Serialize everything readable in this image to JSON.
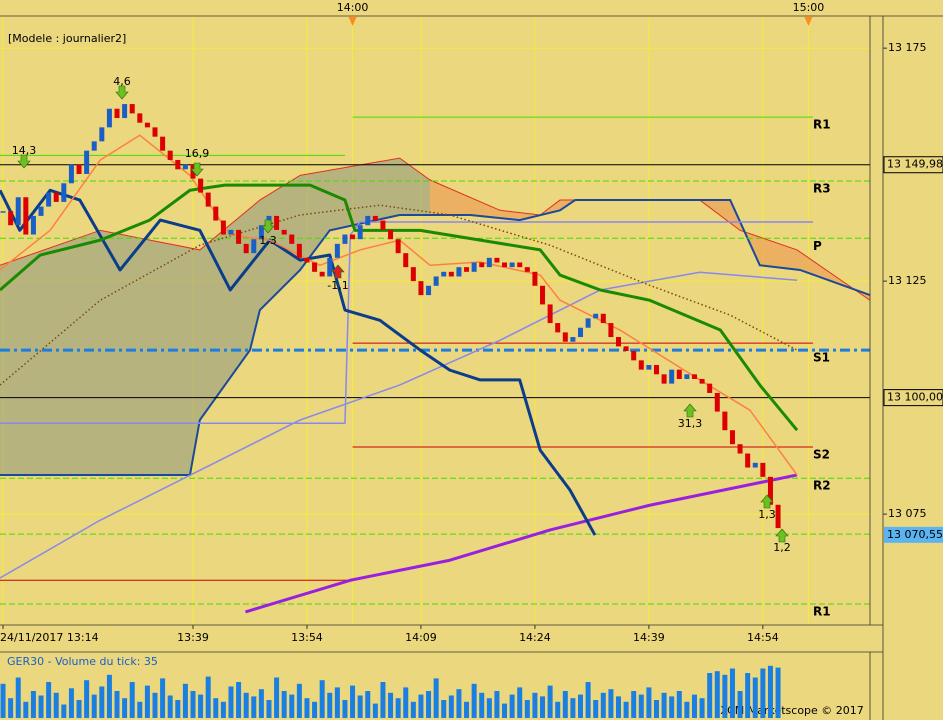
{
  "chart_data": {
    "type": "candlestick",
    "title": "[Modele : journalier2]",
    "footer": "FXCM Marketscope © 2017",
    "xlim": [
      13.6,
      128.1
    ],
    "ylim": [
      13051.2,
      13181.9
    ],
    "yticks": [
      {
        "value": 13175,
        "label": "13 175"
      },
      {
        "value": 13125,
        "label": "13 125"
      },
      {
        "value": 13075,
        "label": "13 075"
      }
    ],
    "xticks": [
      {
        "value": 14,
        "label": "24/11/2017 13:14"
      },
      {
        "value": 39,
        "label": "13:39"
      },
      {
        "value": 54,
        "label": "13:54"
      },
      {
        "value": 69,
        "label": "14:09"
      },
      {
        "value": 84,
        "label": "14:24"
      },
      {
        "value": 99,
        "label": "14:39"
      },
      {
        "value": 114,
        "label": "14:54"
      }
    ],
    "top_xticks": [
      {
        "value": 60,
        "label": "14:00"
      },
      {
        "value": 120,
        "label": "15:00"
      }
    ],
    "up_color": "#1a5fc8",
    "down_color": "#dd0000",
    "x": [
      14,
      15,
      16,
      17,
      18,
      19,
      20,
      21,
      22,
      23,
      24,
      25,
      26,
      27,
      28,
      29,
      30,
      31,
      32,
      33,
      34,
      35,
      36,
      37,
      38,
      39,
      40,
      41,
      42,
      43,
      44,
      45,
      46,
      47,
      48,
      49,
      50,
      51,
      52,
      53,
      54,
      55,
      56,
      57,
      58,
      59,
      60,
      61,
      62,
      63,
      64,
      65,
      66,
      67,
      68,
      69,
      70,
      71,
      72,
      73,
      74,
      75,
      76,
      77,
      78,
      79,
      80,
      81,
      82,
      83,
      84,
      85,
      86,
      87,
      88,
      89,
      90,
      91,
      92,
      93,
      94,
      95,
      96,
      97,
      98,
      99,
      100,
      101,
      102,
      103,
      104,
      105,
      106,
      107,
      108,
      109,
      110,
      111,
      112,
      113,
      114,
      115,
      116
    ],
    "values": [
      13140,
      13137,
      13143,
      13135,
      13139,
      13141,
      13144,
      13142,
      13146,
      13150,
      13148,
      13153,
      13155,
      13158,
      13162,
      13160,
      13163,
      13161,
      13159,
      13158,
      13156,
      13153,
      13151,
      13149,
      13150,
      13147,
      13144,
      13141,
      13138,
      13135,
      13136,
      13133,
      13131,
      13134,
      13137,
      13139,
      13136,
      13135,
      13133,
      13130,
      13129,
      13127,
      13126,
      13130,
      13133,
      13135,
      13134,
      13137,
      13139,
      13138,
      13136,
      13134,
      13131,
      13128,
      13125,
      13122,
      13124,
      13126,
      13127,
      13126,
      13128,
      13127,
      13129,
      13128,
      13130,
      13129,
      13128,
      13129,
      13128,
      13127,
      13124,
      13120,
      13116,
      13114,
      13112,
      13113,
      13115,
      13117,
      13118,
      13116,
      13113,
      13111,
      13110,
      13108,
      13106,
      13107,
      13105,
      13103,
      13106,
      13104,
      13105,
      13104,
      13103,
      13101,
      13097,
      13093,
      13090,
      13088,
      13085,
      13086,
      13083,
      13077,
      13072
    ],
    "levels": [
      {
        "label": "R1",
        "value": 13160.2,
        "color": "#44dd00",
        "style": "solid",
        "start": 60,
        "end": 120.6
      },
      {
        "label": "R3",
        "value": 13146.5,
        "color": "#44dd00",
        "style": "dashed"
      },
      {
        "label": "P",
        "value": 13134.2,
        "color": "#44dd00",
        "style": "dashed"
      },
      {
        "label": "S1",
        "value": 13110.2,
        "color": "#1a7fe0",
        "style": "dashdot"
      },
      {
        "label": "S2",
        "value": 13089.4,
        "color": "#cc0000",
        "style": "solid",
        "start": 60,
        "end": 120.6
      },
      {
        "label": "R2",
        "value": 13082.7,
        "color": "#44dd00",
        "style": "dashed"
      },
      {
        "label": "R1",
        "value": 13055.7,
        "color": "#44dd00",
        "style": "dashed"
      },
      {
        "value": 13111.7,
        "color": "#cc0000",
        "style": "solid",
        "start": 60,
        "end": 120.6
      },
      {
        "value": 13060.8,
        "color": "#cc0000",
        "style": "solid",
        "start": 13.6,
        "end": 60
      },
      {
        "value": 13152.0,
        "color": "#44dd00",
        "style": "solid",
        "start": 13.6,
        "end": 59
      },
      {
        "value": 13070.7,
        "color": "#44dd00",
        "style": "dashed"
      }
    ],
    "price_markers": [
      {
        "value": 13149.98,
        "label": "13 149,98",
        "color": "#000000"
      },
      {
        "value": 13100,
        "label": "13 100,00",
        "color": "#000000"
      },
      {
        "value": 13070.55,
        "label": "13 070,55",
        "color": "#5bb4f0"
      }
    ],
    "cloud": {
      "upper": {
        "color": "#e03020",
        "x": [
          13.6,
          26.8,
          39.9,
          47.8,
          53.1,
          66.2,
          70.2,
          79.4,
          84.7,
          87.3,
          105.7,
          111.0,
          118.5,
          128.1
        ],
        "values": [
          13128.4,
          13135.9,
          13131.7,
          13142.4,
          13147.7,
          13151.4,
          13146.7,
          13140.2,
          13139.2,
          13142.4,
          13142.4,
          13135.9,
          13131.7,
          13120.9
        ]
      },
      "lower": {
        "color": "#1a4a9a",
        "x": [
          13.6,
          38.6,
          39.9,
          46.5,
          47.8,
          53.1,
          57.0,
          66.2,
          75.5,
          82.0,
          87.3,
          89.3,
          109.7,
          113.6,
          118.9,
          128.1
        ],
        "values": [
          13083.4,
          13083.4,
          13095.2,
          13110.2,
          13118.8,
          13127.4,
          13135.9,
          13139.2,
          13139.2,
          13138.1,
          13140.2,
          13142.4,
          13142.4,
          13128.4,
          13127.4,
          13122.0
        ]
      }
    },
    "lines": [
      {
        "color": "#8888ee",
        "width": 1.5,
        "x": [
          13.6,
          59.0,
          59.7,
          61.0,
          120.6
        ],
        "values": [
          13094.5,
          13094.5,
          13134.9,
          13137.7,
          13137.7
        ]
      },
      {
        "color": "#8888ee",
        "width": 1.5,
        "x": [
          13.6,
          26.8,
          39.9,
          53.1,
          66.2,
          79.4,
          92.6,
          105.7,
          118.5
        ],
        "values": [
          13061.3,
          13073.7,
          13084.4,
          13095.2,
          13102.7,
          13112.3,
          13123.1,
          13126.9,
          13125.2
        ]
      },
      {
        "color": "#7a4a10",
        "width": 1.5,
        "dotted": true,
        "x": [
          13.6,
          26.8,
          39.9,
          53.1,
          63.6,
          72.8,
          86.0,
          99.1,
          109.7,
          118.5
        ],
        "values": [
          13102.7,
          13120.9,
          13132.7,
          13139.2,
          13141.3,
          13139.2,
          13132.7,
          13124.1,
          13117.7,
          13110.2
        ]
      },
      {
        "color": "#9a20e0",
        "width": 3,
        "x": [
          45.9,
          59.7,
          72.8,
          86.0,
          99.1,
          118.5
        ],
        "values": [
          13054.0,
          13060.8,
          13065.1,
          13071.6,
          13076.9,
          13083.4
        ]
      },
      {
        "color": "#0a3d8a",
        "width": 3,
        "x": [
          13.6,
          16.2,
          20.2,
          24.1,
          29.4,
          34.7,
          39.9,
          43.9,
          49.1,
          53.1,
          57.0,
          59.0,
          63.6,
          68.9,
          72.8,
          76.8,
          82.0,
          84.7,
          88.6,
          91.9
        ],
        "values": [
          13144.5,
          13135.9,
          13144.5,
          13142.4,
          13127.4,
          13138.1,
          13135.9,
          13123.1,
          13133.8,
          13129.5,
          13130.6,
          13118.8,
          13116.6,
          13110.2,
          13105.9,
          13103.8,
          13103.8,
          13088.7,
          13080.2,
          13070.5
        ]
      },
      {
        "color": "#ff8040",
        "width": 1.5,
        "x": [
          13.6,
          20.2,
          26.8,
          32.0,
          38.6,
          43.9,
          49.1,
          55.7,
          61.0,
          66.2,
          70.2,
          76.8,
          84.7,
          87.3,
          95.2,
          105.7,
          112.3,
          118.5
        ],
        "values": [
          13127.4,
          13135.9,
          13151.0,
          13156.3,
          13147.7,
          13134.9,
          13133.8,
          13128.4,
          13131.7,
          13133.8,
          13128.4,
          13129.1,
          13126.3,
          13120.9,
          13114.5,
          13103.8,
          13097.3,
          13083.4
        ]
      },
      {
        "color": "#1a8a00",
        "width": 3,
        "x": [
          13.6,
          18.9,
          26.8,
          33.3,
          38.6,
          43.2,
          54.4,
          59.0,
          60.3,
          68.9,
          76.8,
          84.7,
          87.3,
          92.6,
          99.1,
          108.4,
          113.6,
          118.5
        ],
        "values": [
          13123.1,
          13130.6,
          13133.8,
          13138.1,
          13144.5,
          13145.6,
          13145.6,
          13142.4,
          13135.9,
          13135.9,
          13133.8,
          13131.7,
          13126.3,
          13123.1,
          13120.9,
          13114.5,
          13102.7,
          13093.0
        ]
      }
    ],
    "annotations": [
      "4,6",
      "14,3",
      "16,9",
      "1,3",
      "-1,1",
      "31,3",
      "1,3",
      "1,2"
    ],
    "volume": {
      "label": "GER30 - Volume du tick: 35",
      "color": "#1a7fe0",
      "ylim": [
        0,
        70
      ],
      "values": [
        38,
        22,
        45,
        18,
        30,
        25,
        40,
        28,
        15,
        33,
        20,
        42,
        26,
        35,
        48,
        30,
        22,
        40,
        18,
        36,
        28,
        44,
        25,
        20,
        38,
        30,
        26,
        46,
        22,
        18,
        35,
        40,
        28,
        24,
        32,
        20,
        45,
        30,
        26,
        38,
        22,
        18,
        42,
        28,
        34,
        20,
        36,
        25,
        30,
        16,
        40,
        28,
        22,
        34,
        18,
        26,
        30,
        44,
        20,
        25,
        32,
        18,
        38,
        28,
        22,
        30,
        16,
        26,
        34,
        20,
        28,
        24,
        36,
        18,
        30,
        22,
        26,
        40,
        20,
        28,
        32,
        24,
        18,
        30,
        26,
        34,
        20,
        28,
        24,
        30,
        18,
        26,
        22,
        50,
        52,
        48,
        55,
        30,
        50,
        45,
        55,
        58,
        56
      ]
    }
  }
}
